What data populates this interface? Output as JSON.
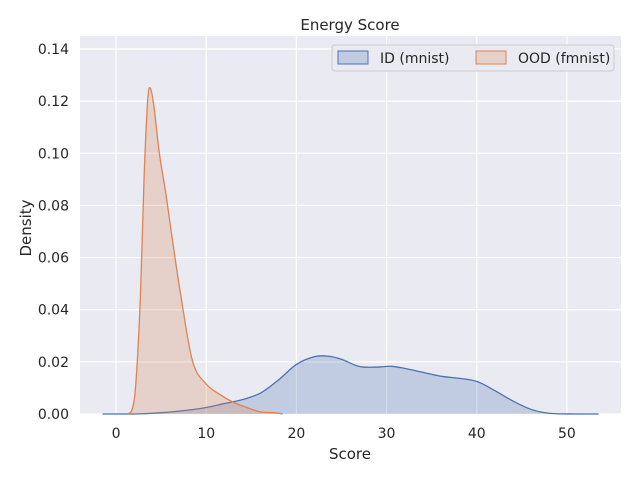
{
  "chart_data": {
    "type": "area",
    "title": "Energy Score",
    "xlabel": "Score",
    "ylabel": "Density",
    "xlim": [
      -4,
      56
    ],
    "ylim": [
      0,
      0.145
    ],
    "xticks": [
      0,
      10,
      20,
      30,
      40,
      50
    ],
    "yticks": [
      0.0,
      0.02,
      0.04,
      0.06,
      0.08,
      0.1,
      0.12,
      0.14
    ],
    "xtick_labels": [
      "0",
      "10",
      "20",
      "30",
      "40",
      "50"
    ],
    "ytick_labels": [
      "0.00",
      "0.02",
      "0.04",
      "0.06",
      "0.08",
      "0.10",
      "0.12",
      "0.14"
    ],
    "grid": true,
    "legend_position": "top-right",
    "series": [
      {
        "name": "ID (mnist)",
        "color": "#4c72b0",
        "fill": "#4c72b0",
        "points": [
          [
            -1.5,
            0.0
          ],
          [
            2,
            0.0
          ],
          [
            5,
            0.0005
          ],
          [
            8,
            0.0015
          ],
          [
            10,
            0.0025
          ],
          [
            12,
            0.004
          ],
          [
            14,
            0.0055
          ],
          [
            16,
            0.008
          ],
          [
            18,
            0.013
          ],
          [
            20,
            0.019
          ],
          [
            22,
            0.022
          ],
          [
            23.5,
            0.0222
          ],
          [
            25,
            0.021
          ],
          [
            27,
            0.0182
          ],
          [
            29,
            0.018
          ],
          [
            30.5,
            0.0183
          ],
          [
            32,
            0.0175
          ],
          [
            34,
            0.016
          ],
          [
            36,
            0.0145
          ],
          [
            38,
            0.0137
          ],
          [
            40,
            0.0125
          ],
          [
            42,
            0.009
          ],
          [
            44,
            0.005
          ],
          [
            46,
            0.0018
          ],
          [
            48,
            0.0003
          ],
          [
            51,
            0.0
          ],
          [
            53.5,
            0.0
          ]
        ]
      },
      {
        "name": "OOD (fmnist)",
        "color": "#dd8452",
        "fill": "#dd8452",
        "points": [
          [
            1.3,
            0.0
          ],
          [
            1.8,
            0.002
          ],
          [
            2.2,
            0.012
          ],
          [
            2.7,
            0.045
          ],
          [
            3.1,
            0.09
          ],
          [
            3.5,
            0.12
          ],
          [
            3.8,
            0.125
          ],
          [
            4.2,
            0.118
          ],
          [
            4.8,
            0.1
          ],
          [
            5.5,
            0.085
          ],
          [
            6.2,
            0.068
          ],
          [
            7.2,
            0.045
          ],
          [
            8.5,
            0.02
          ],
          [
            10,
            0.0115
          ],
          [
            11.5,
            0.0075
          ],
          [
            13,
            0.0045
          ],
          [
            14.5,
            0.0025
          ],
          [
            16,
            0.0008
          ],
          [
            17.5,
            0.0005
          ],
          [
            18.5,
            0.0
          ]
        ]
      }
    ]
  }
}
